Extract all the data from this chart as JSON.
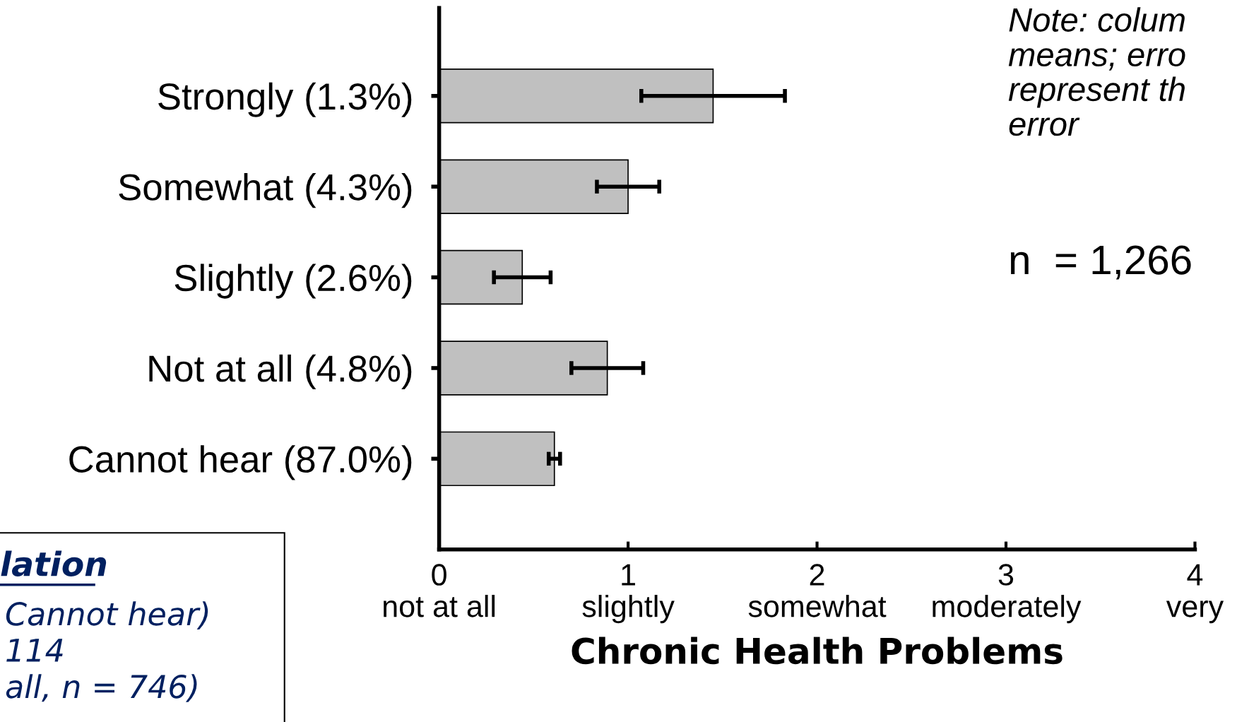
{
  "chart_data": {
    "type": "bar",
    "orientation": "horizontal",
    "categories": [
      "Strongly (1.3%)",
      "Somewhat (4.3%)",
      "Slightly (2.6%)",
      "Not at all (4.8%)",
      "Cannot hear (87.0%)"
    ],
    "values": [
      1.45,
      1.0,
      0.44,
      0.89,
      0.61
    ],
    "errors": [
      0.38,
      0.165,
      0.15,
      0.19,
      0.03
    ],
    "color": "#c0c0c0",
    "xlim": [
      0,
      4
    ],
    "xticks": [
      {
        "value": 0,
        "label": "0\nnot at all"
      },
      {
        "value": 1,
        "label": "1\nslightly"
      },
      {
        "value": 2,
        "label": "2\nsomewhat"
      },
      {
        "value": 3,
        "label": "3\nmoderately"
      },
      {
        "value": 4,
        "label": "4\nvery"
      }
    ],
    "xlabel": "Chronic Health Problems",
    "grid": false,
    "annotations": [
      "Note: colum\nmeans; erro\nrepresent th\nerror",
      "n  = 1,266",
      "lation",
      "Cannot hear)\n114\nall, n = 746)"
    ]
  }
}
